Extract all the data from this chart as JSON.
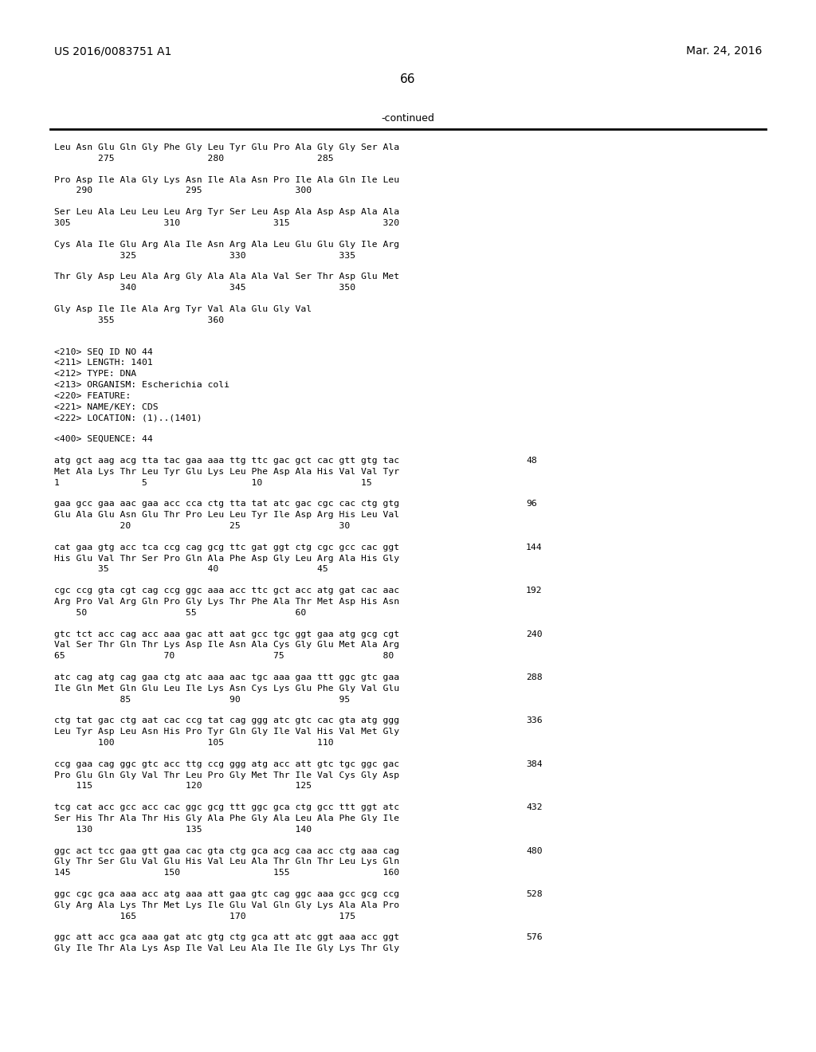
{
  "patent_number": "US 2016/0083751 A1",
  "date": "Mar. 24, 2016",
  "page_number": "66",
  "continued_label": "-continued",
  "background_color": "#ffffff",
  "text_color": "#000000",
  "content_lines": [
    {
      "type": "seq_aa",
      "l1": "Leu Asn Glu Gln Gly Phe Gly Leu Tyr Glu Pro Ala Gly Gly Ser Ala",
      "l2": "        275                 280                 285"
    },
    {
      "type": "gap"
    },
    {
      "type": "seq_aa",
      "l1": "Pro Asp Ile Ala Gly Lys Asn Ile Ala Asn Pro Ile Ala Gln Ile Leu",
      "l2": "    290                 295                 300"
    },
    {
      "type": "gap"
    },
    {
      "type": "seq_aa",
      "l1": "Ser Leu Ala Leu Leu Leu Arg Tyr Ser Leu Asp Ala Asp Asp Ala Ala",
      "l2": "305                 310                 315                 320"
    },
    {
      "type": "gap"
    },
    {
      "type": "seq_aa",
      "l1": "Cys Ala Ile Glu Arg Ala Ile Asn Arg Ala Leu Glu Glu Gly Ile Arg",
      "l2": "            325                 330                 335"
    },
    {
      "type": "gap"
    },
    {
      "type": "seq_aa",
      "l1": "Thr Gly Asp Leu Ala Arg Gly Ala Ala Ala Val Ser Thr Asp Glu Met",
      "l2": "            340                 345                 350"
    },
    {
      "type": "gap"
    },
    {
      "type": "seq_aa",
      "l1": "Gly Asp Ile Ile Ala Arg Tyr Val Ala Glu Gly Val",
      "l2": "        355                 360"
    },
    {
      "type": "gap"
    },
    {
      "type": "gap"
    },
    {
      "type": "meta",
      "text": "<210> SEQ ID NO 44"
    },
    {
      "type": "meta",
      "text": "<211> LENGTH: 1401"
    },
    {
      "type": "meta",
      "text": "<212> TYPE: DNA"
    },
    {
      "type": "meta",
      "text": "<213> ORGANISM: Escherichia coli"
    },
    {
      "type": "meta",
      "text": "<220> FEATURE:"
    },
    {
      "type": "meta",
      "text": "<221> NAME/KEY: CDS"
    },
    {
      "type": "meta",
      "text": "<222> LOCATION: (1)..(1401)"
    },
    {
      "type": "gap"
    },
    {
      "type": "meta",
      "text": "<400> SEQUENCE: 44"
    },
    {
      "type": "gap"
    },
    {
      "type": "seq_dna",
      "l1": "atg gct aag acg tta tac gaa aaa ttg ttc gac gct cac gtt gtg tac",
      "num": "48",
      "l2": "Met Ala Lys Thr Leu Tyr Glu Lys Leu Phe Asp Ala His Val Val Tyr",
      "l3": "1               5                   10                  15"
    },
    {
      "type": "gap"
    },
    {
      "type": "seq_dna",
      "l1": "gaa gcc gaa aac gaa acc cca ctg tta tat atc gac cgc cac ctg gtg",
      "num": "96",
      "l2": "Glu Ala Glu Asn Glu Thr Pro Leu Leu Tyr Ile Asp Arg His Leu Val",
      "l3": "            20                  25                  30"
    },
    {
      "type": "gap"
    },
    {
      "type": "seq_dna",
      "l1": "cat gaa gtg acc tca ccg cag gcg ttc gat ggt ctg cgc gcc cac ggt",
      "num": "144",
      "l2": "His Glu Val Thr Ser Pro Gln Ala Phe Asp Gly Leu Arg Ala His Gly",
      "l3": "        35                  40                  45"
    },
    {
      "type": "gap"
    },
    {
      "type": "seq_dna",
      "l1": "cgc ccg gta cgt cag ccg ggc aaa acc ttc gct acc atg gat cac aac",
      "num": "192",
      "l2": "Arg Pro Val Arg Gln Pro Gly Lys Thr Phe Ala Thr Met Asp His Asn",
      "l3": "    50                  55                  60"
    },
    {
      "type": "gap"
    },
    {
      "type": "seq_dna",
      "l1": "gtc tct acc cag acc aaa gac att aat gcc tgc ggt gaa atg gcg cgt",
      "num": "240",
      "l2": "Val Ser Thr Gln Thr Lys Asp Ile Asn Ala Cys Gly Glu Met Ala Arg",
      "l3": "65                  70                  75                  80"
    },
    {
      "type": "gap"
    },
    {
      "type": "seq_dna",
      "l1": "atc cag atg cag gaa ctg atc aaa aac tgc aaa gaa ttt ggc gtc gaa",
      "num": "288",
      "l2": "Ile Gln Met Gln Glu Leu Ile Lys Asn Cys Lys Glu Phe Gly Val Glu",
      "l3": "            85                  90                  95"
    },
    {
      "type": "gap"
    },
    {
      "type": "seq_dna",
      "l1": "ctg tat gac ctg aat cac ccg tat cag ggg atc gtc cac gta atg ggg",
      "num": "336",
      "l2": "Leu Tyr Asp Leu Asn His Pro Tyr Gln Gly Ile Val His Val Met Gly",
      "l3": "        100                 105                 110"
    },
    {
      "type": "gap"
    },
    {
      "type": "seq_dna",
      "l1": "ccg gaa cag ggc gtc acc ttg ccg ggg atg acc att gtc tgc ggc gac",
      "num": "384",
      "l2": "Pro Glu Gln Gly Val Thr Leu Pro Gly Met Thr Ile Val Cys Gly Asp",
      "l3": "    115                 120                 125"
    },
    {
      "type": "gap"
    },
    {
      "type": "seq_dna",
      "l1": "tcg cat acc gcc acc cac ggc gcg ttt ggc gca ctg gcc ttt ggt atc",
      "num": "432",
      "l2": "Ser His Thr Ala Thr His Gly Ala Phe Gly Ala Leu Ala Phe Gly Ile",
      "l3": "    130                 135                 140"
    },
    {
      "type": "gap"
    },
    {
      "type": "seq_dna",
      "l1": "ggc act tcc gaa gtt gaa cac gta ctg gca acg caa acc ctg aaa cag",
      "num": "480",
      "l2": "Gly Thr Ser Glu Val Glu His Val Leu Ala Thr Gln Thr Leu Lys Gln",
      "l3": "145                 150                 155                 160"
    },
    {
      "type": "gap"
    },
    {
      "type": "seq_dna",
      "l1": "ggc cgc gca aaa acc atg aaa att gaa gtc cag ggc aaa gcc gcg ccg",
      "num": "528",
      "l2": "Gly Arg Ala Lys Thr Met Lys Ile Glu Val Gln Gly Lys Ala Ala Pro",
      "l3": "            165                 170                 175"
    },
    {
      "type": "gap"
    },
    {
      "type": "seq_dna",
      "l1": "ggc att acc gca aaa gat atc gtg ctg gca att atc ggt aaa acc ggt",
      "num": "576",
      "l2": "Gly Ile Thr Ala Lys Asp Ile Val Leu Ala Ile Ile Gly Lys Thr Gly",
      "l3": ""
    }
  ]
}
